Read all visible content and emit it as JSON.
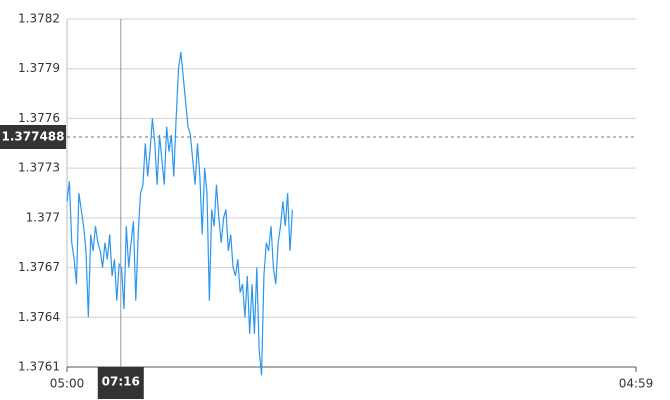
{
  "chart_data": {
    "type": "line",
    "x": [
      0,
      6,
      12,
      18,
      24,
      30,
      36,
      42,
      48,
      54,
      60,
      66,
      72,
      78,
      84,
      90,
      96,
      102,
      108,
      114,
      120,
      126,
      132,
      138,
      144,
      150,
      156,
      162,
      168,
      174,
      180,
      186,
      192,
      198,
      204,
      210,
      216,
      222,
      228,
      234,
      240,
      246,
      252,
      258,
      264,
      270,
      276,
      282,
      288,
      294,
      300,
      306,
      312,
      318,
      324,
      330,
      336,
      342,
      348,
      354,
      360,
      366,
      372,
      378,
      384,
      390,
      396,
      402,
      408,
      414,
      420,
      426,
      432,
      438,
      444,
      450,
      456,
      462,
      468,
      474,
      480,
      486,
      492,
      498,
      504,
      510,
      516,
      522,
      528,
      534,
      540,
      546,
      552,
      558,
      564,
      570
    ],
    "series": [
      {
        "color": "#2d96ee",
        "values": [
          1.3771,
          1.37722,
          1.37685,
          1.37675,
          1.3766,
          1.37715,
          1.37705,
          1.37695,
          1.3768,
          1.3764,
          1.3769,
          1.3768,
          1.37695,
          1.37685,
          1.3768,
          1.3767,
          1.37685,
          1.37675,
          1.3769,
          1.37665,
          1.37675,
          1.3765,
          1.37672,
          1.3767,
          1.37645,
          1.37695,
          1.3767,
          1.37685,
          1.37698,
          1.3765,
          1.3769,
          1.37715,
          1.3772,
          1.37745,
          1.37725,
          1.3774,
          1.3776,
          1.37745,
          1.3772,
          1.3775,
          1.37735,
          1.3772,
          1.37755,
          1.3774,
          1.3775,
          1.37725,
          1.3776,
          1.3779,
          1.378,
          1.37785,
          1.3777,
          1.37755,
          1.3775,
          1.37735,
          1.3772,
          1.37745,
          1.37725,
          1.3769,
          1.3773,
          1.37715,
          1.3765,
          1.37705,
          1.37695,
          1.3772,
          1.377,
          1.37685,
          1.377,
          1.37705,
          1.3768,
          1.3769,
          1.3767,
          1.37665,
          1.37675,
          1.37655,
          1.3766,
          1.3764,
          1.37665,
          1.3763,
          1.3766,
          1.3763,
          1.3767,
          1.3762,
          1.37605,
          1.37665,
          1.37685,
          1.3768,
          1.37695,
          1.3767,
          1.3766,
          1.37685,
          1.37695,
          1.3771,
          1.37695,
          1.37715,
          1.3768,
          1.37705
        ]
      }
    ],
    "xlim": [
      0,
      1439
    ],
    "xticks": [
      {
        "value": 0,
        "label": "05:00"
      },
      {
        "value": 1439,
        "label": "04:59"
      }
    ],
    "ylim": [
      1.3761,
      1.3782
    ],
    "yticks": [
      1.3761,
      1.3764,
      1.3767,
      1.377,
      1.3773,
      1.3776,
      1.3779,
      1.3782
    ],
    "grid": true,
    "crosshair": {
      "x": {
        "value": 136,
        "label": "07:16"
      },
      "y": 1.377488
    }
  }
}
